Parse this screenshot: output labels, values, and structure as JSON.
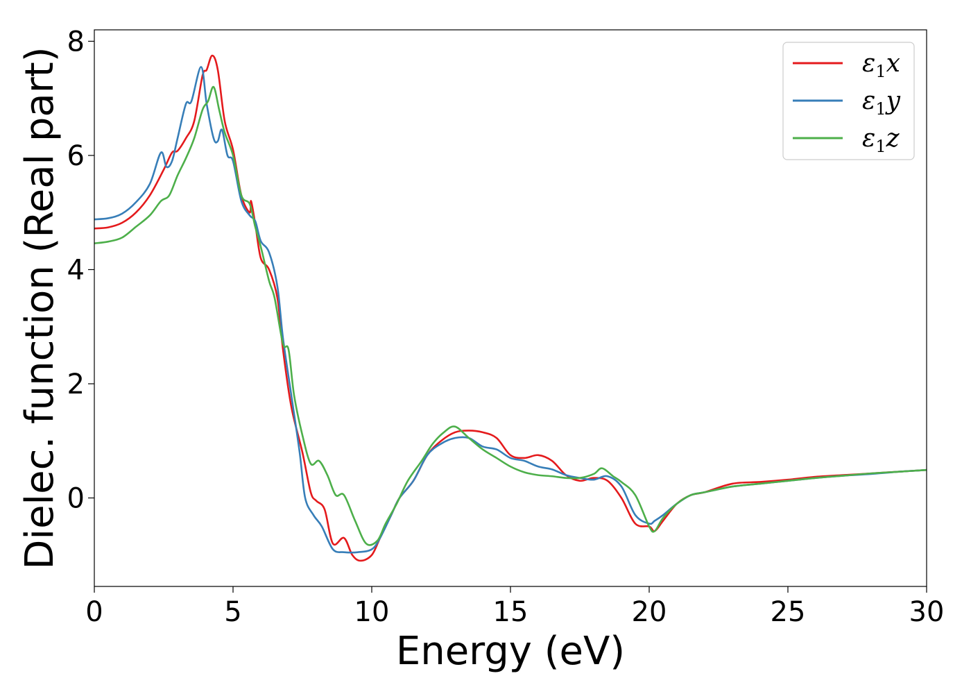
{
  "chart_data": {
    "type": "line",
    "xlabel": "Energy (eV)",
    "ylabel": "Dielec. function (Real part)",
    "xlim": [
      0,
      30
    ],
    "ylim": [
      -1.55,
      8.2
    ],
    "xticks": [
      0,
      5,
      10,
      15,
      20,
      25,
      30
    ],
    "yticks": [
      0,
      2,
      4,
      6,
      8
    ],
    "xtick_labels": [
      "0",
      "5",
      "10",
      "15",
      "20",
      "25",
      "30"
    ],
    "ytick_labels": [
      "0",
      "2",
      "4",
      "6",
      "8"
    ],
    "grid": false,
    "legend_position": "top-right",
    "series": [
      {
        "name": "ε₁x",
        "legend_main": "ε",
        "legend_sub": "1",
        "legend_var": "x",
        "color": "#e41a1c",
        "points": [
          [
            0,
            4.72
          ],
          [
            0.5,
            4.74
          ],
          [
            1,
            4.82
          ],
          [
            1.5,
            5.0
          ],
          [
            2,
            5.3
          ],
          [
            2.5,
            5.75
          ],
          [
            2.8,
            6.05
          ],
          [
            3,
            6.08
          ],
          [
            3.3,
            6.3
          ],
          [
            3.6,
            6.6
          ],
          [
            3.9,
            7.4
          ],
          [
            4.05,
            7.5
          ],
          [
            4.25,
            7.75
          ],
          [
            4.45,
            7.5
          ],
          [
            4.7,
            6.6
          ],
          [
            5,
            6.1
          ],
          [
            5.3,
            5.3
          ],
          [
            5.6,
            5.0
          ],
          [
            5.65,
            5.2
          ],
          [
            5.8,
            4.8
          ],
          [
            6,
            4.2
          ],
          [
            6.3,
            4.0
          ],
          [
            6.6,
            3.5
          ],
          [
            6.8,
            2.6
          ],
          [
            7.1,
            1.6
          ],
          [
            7.5,
            0.8
          ],
          [
            7.8,
            0.1
          ],
          [
            8.0,
            -0.05
          ],
          [
            8.3,
            -0.2
          ],
          [
            8.6,
            -0.8
          ],
          [
            9.0,
            -0.7
          ],
          [
            9.3,
            -1.0
          ],
          [
            9.6,
            -1.1
          ],
          [
            10,
            -1.0
          ],
          [
            10.3,
            -0.7
          ],
          [
            10.7,
            -0.3
          ],
          [
            11,
            0.0
          ],
          [
            11.5,
            0.3
          ],
          [
            12,
            0.75
          ],
          [
            12.5,
            1.0
          ],
          [
            13,
            1.15
          ],
          [
            13.5,
            1.18
          ],
          [
            14,
            1.15
          ],
          [
            14.5,
            1.05
          ],
          [
            15,
            0.75
          ],
          [
            15.5,
            0.7
          ],
          [
            16,
            0.75
          ],
          [
            16.5,
            0.65
          ],
          [
            17,
            0.4
          ],
          [
            17.5,
            0.3
          ],
          [
            18,
            0.35
          ],
          [
            18.5,
            0.3
          ],
          [
            19,
            0.0
          ],
          [
            19.5,
            -0.45
          ],
          [
            20,
            -0.5
          ],
          [
            20.2,
            -0.58
          ],
          [
            20.5,
            -0.4
          ],
          [
            21,
            -0.1
          ],
          [
            21.5,
            0.05
          ],
          [
            22,
            0.1
          ],
          [
            23,
            0.25
          ],
          [
            24,
            0.28
          ],
          [
            25,
            0.32
          ],
          [
            26,
            0.37
          ],
          [
            27,
            0.4
          ],
          [
            28,
            0.43
          ],
          [
            29,
            0.46
          ],
          [
            30,
            0.49
          ]
        ]
      },
      {
        "name": "ε₁y",
        "legend_main": "ε",
        "legend_sub": "1",
        "legend_var": "y",
        "color": "#377eb8",
        "points": [
          [
            0,
            4.88
          ],
          [
            0.5,
            4.9
          ],
          [
            1,
            4.98
          ],
          [
            1.5,
            5.18
          ],
          [
            2,
            5.5
          ],
          [
            2.4,
            6.05
          ],
          [
            2.6,
            5.8
          ],
          [
            2.8,
            5.9
          ],
          [
            3.0,
            6.3
          ],
          [
            3.3,
            6.9
          ],
          [
            3.5,
            6.95
          ],
          [
            3.85,
            7.55
          ],
          [
            4.05,
            6.9
          ],
          [
            4.3,
            6.3
          ],
          [
            4.45,
            6.25
          ],
          [
            4.6,
            6.45
          ],
          [
            4.8,
            6.0
          ],
          [
            5,
            5.9
          ],
          [
            5.3,
            5.2
          ],
          [
            5.6,
            4.95
          ],
          [
            5.8,
            4.85
          ],
          [
            6,
            4.5
          ],
          [
            6.3,
            4.3
          ],
          [
            6.6,
            3.7
          ],
          [
            6.8,
            2.8
          ],
          [
            7.1,
            1.8
          ],
          [
            7.4,
            0.8
          ],
          [
            7.6,
            0.0
          ],
          [
            7.9,
            -0.3
          ],
          [
            8.2,
            -0.5
          ],
          [
            8.6,
            -0.9
          ],
          [
            9.0,
            -0.95
          ],
          [
            9.5,
            -0.95
          ],
          [
            10,
            -0.9
          ],
          [
            10.3,
            -0.7
          ],
          [
            10.7,
            -0.3
          ],
          [
            11,
            0.0
          ],
          [
            11.5,
            0.3
          ],
          [
            12,
            0.75
          ],
          [
            12.5,
            0.95
          ],
          [
            13,
            1.05
          ],
          [
            13.5,
            1.05
          ],
          [
            14,
            0.9
          ],
          [
            14.5,
            0.85
          ],
          [
            15,
            0.7
          ],
          [
            15.5,
            0.65
          ],
          [
            16,
            0.55
          ],
          [
            16.5,
            0.5
          ],
          [
            17,
            0.4
          ],
          [
            17.5,
            0.35
          ],
          [
            18,
            0.32
          ],
          [
            18.5,
            0.38
          ],
          [
            19,
            0.2
          ],
          [
            19.5,
            -0.3
          ],
          [
            20,
            -0.45
          ],
          [
            20.2,
            -0.4
          ],
          [
            20.5,
            -0.3
          ],
          [
            21,
            -0.1
          ],
          [
            21.5,
            0.05
          ],
          [
            22,
            0.1
          ],
          [
            23,
            0.2
          ],
          [
            24,
            0.25
          ],
          [
            25,
            0.3
          ],
          [
            26,
            0.35
          ],
          [
            27,
            0.39
          ],
          [
            28,
            0.42
          ],
          [
            29,
            0.46
          ],
          [
            30,
            0.49
          ]
        ]
      },
      {
        "name": "ε₁z",
        "legend_main": "ε",
        "legend_sub": "1",
        "legend_var": "z",
        "color": "#4daf4a",
        "points": [
          [
            0,
            4.46
          ],
          [
            0.5,
            4.49
          ],
          [
            1,
            4.56
          ],
          [
            1.5,
            4.75
          ],
          [
            2,
            4.95
          ],
          [
            2.4,
            5.2
          ],
          [
            2.7,
            5.3
          ],
          [
            3.0,
            5.65
          ],
          [
            3.3,
            5.95
          ],
          [
            3.6,
            6.3
          ],
          [
            3.9,
            6.8
          ],
          [
            4.1,
            6.95
          ],
          [
            4.3,
            7.2
          ],
          [
            4.5,
            6.8
          ],
          [
            4.7,
            6.4
          ],
          [
            5,
            6.0
          ],
          [
            5.3,
            5.3
          ],
          [
            5.6,
            5.15
          ],
          [
            5.8,
            4.75
          ],
          [
            6,
            4.4
          ],
          [
            6.3,
            3.8
          ],
          [
            6.5,
            3.5
          ],
          [
            6.8,
            2.7
          ],
          [
            7.0,
            2.6
          ],
          [
            7.2,
            1.8
          ],
          [
            7.5,
            1.1
          ],
          [
            7.8,
            0.6
          ],
          [
            8.1,
            0.65
          ],
          [
            8.4,
            0.4
          ],
          [
            8.7,
            0.05
          ],
          [
            9.0,
            0.05
          ],
          [
            9.4,
            -0.4
          ],
          [
            9.8,
            -0.8
          ],
          [
            10.2,
            -0.75
          ],
          [
            10.5,
            -0.45
          ],
          [
            10.9,
            -0.1
          ],
          [
            11.3,
            0.3
          ],
          [
            11.8,
            0.65
          ],
          [
            12.2,
            0.95
          ],
          [
            12.6,
            1.15
          ],
          [
            13,
            1.25
          ],
          [
            13.5,
            1.05
          ],
          [
            14,
            0.85
          ],
          [
            14.5,
            0.7
          ],
          [
            15,
            0.55
          ],
          [
            15.5,
            0.45
          ],
          [
            16,
            0.4
          ],
          [
            16.5,
            0.38
          ],
          [
            17,
            0.35
          ],
          [
            17.5,
            0.35
          ],
          [
            18,
            0.42
          ],
          [
            18.3,
            0.52
          ],
          [
            18.7,
            0.38
          ],
          [
            19,
            0.28
          ],
          [
            19.5,
            0.05
          ],
          [
            20,
            -0.5
          ],
          [
            20.2,
            -0.58
          ],
          [
            20.5,
            -0.35
          ],
          [
            21,
            -0.1
          ],
          [
            21.5,
            0.05
          ],
          [
            22,
            0.1
          ],
          [
            23,
            0.2
          ],
          [
            24,
            0.25
          ],
          [
            25,
            0.3
          ],
          [
            26,
            0.35
          ],
          [
            27,
            0.39
          ],
          [
            28,
            0.43
          ],
          [
            29,
            0.46
          ],
          [
            30,
            0.49
          ]
        ]
      }
    ]
  }
}
